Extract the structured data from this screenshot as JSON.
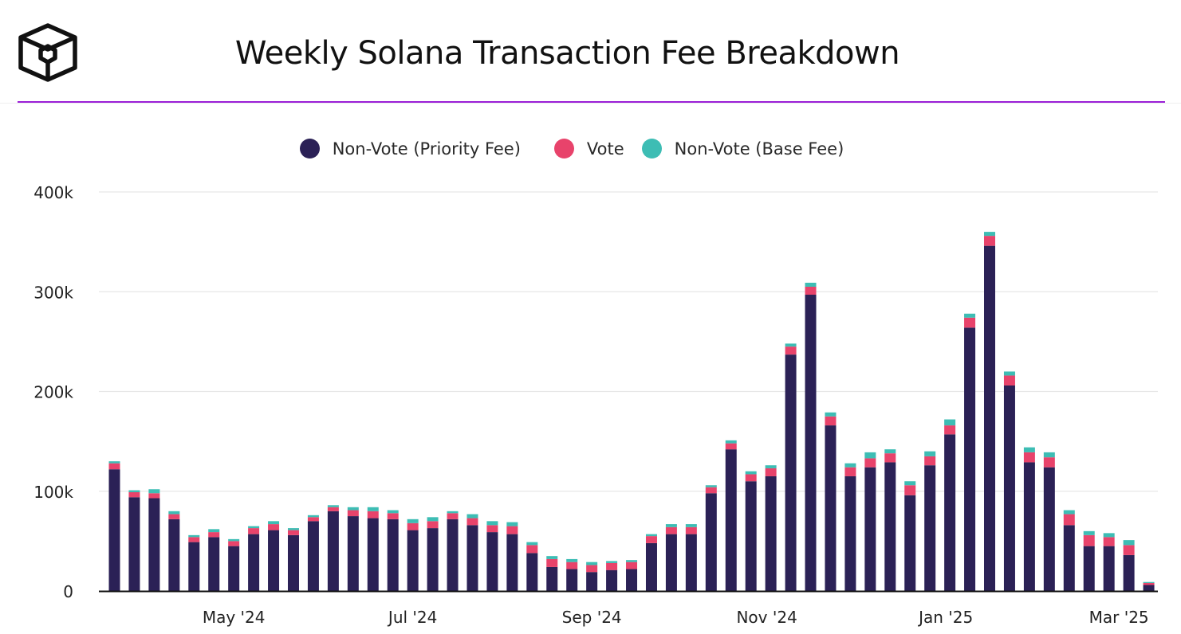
{
  "header": {
    "title": "Weekly Solana Transaction Fee Breakdown",
    "logo_icon": "cube-logo-icon",
    "accent_color": "#9b1fd6"
  },
  "legend": [
    {
      "name": "Non-Vote (Priority Fee)",
      "color": "#2b2156"
    },
    {
      "name": "Vote",
      "color": "#e8436b"
    },
    {
      "name": "Non-Vote (Base Fee)",
      "color": "#3dbdb4"
    }
  ],
  "chart_data": {
    "type": "bar",
    "stacked": true,
    "title": "Weekly Solana Transaction Fee Breakdown",
    "xlabel": "",
    "ylabel": "",
    "ylim": [
      0,
      400000
    ],
    "yticks": [
      "0",
      "100k",
      "200k",
      "300k",
      "400k"
    ],
    "xtick_labels": [
      {
        "label": "May '24",
        "index": 6.5
      },
      {
        "label": "Jul '24",
        "index": 15.5
      },
      {
        "label": "Sep '24",
        "index": 24.5
      },
      {
        "label": "Nov '24",
        "index": 33.3
      },
      {
        "label": "Jan '25",
        "index": 42.3
      },
      {
        "label": "Mar '25",
        "index": 51
      }
    ],
    "grid": true,
    "legend_position": "top-center",
    "series": [
      {
        "name": "Non-Vote (Priority Fee)",
        "color": "#2b2156",
        "values": [
          122000,
          94000,
          93000,
          72000,
          49000,
          54000,
          45000,
          57000,
          61000,
          56000,
          70000,
          80000,
          75000,
          73000,
          72000,
          61000,
          63000,
          72000,
          66000,
          59000,
          57000,
          38000,
          24000,
          22000,
          19000,
          21000,
          22000,
          48000,
          57000,
          57000,
          98000,
          142000,
          110000,
          115000,
          237000,
          297000,
          166000,
          115000,
          124000,
          129000,
          96000,
          126000,
          157000,
          264000,
          346000,
          206000,
          129000,
          124000,
          66000,
          45000,
          45000,
          36000,
          6000
        ]
      },
      {
        "name": "Vote",
        "color": "#e8436b",
        "values": [
          6000,
          5000,
          5000,
          5000,
          5000,
          5000,
          5000,
          6000,
          6000,
          5000,
          4000,
          4000,
          6000,
          7000,
          6000,
          7000,
          7000,
          6000,
          7000,
          7000,
          8000,
          8000,
          8000,
          7000,
          7000,
          7000,
          7000,
          7000,
          7000,
          7000,
          6000,
          6000,
          7000,
          8000,
          8000,
          8000,
          9000,
          9000,
          9000,
          9000,
          10000,
          9000,
          9000,
          10000,
          10000,
          10000,
          10000,
          10000,
          11000,
          11000,
          9000,
          10000,
          2000
        ]
      },
      {
        "name": "Non-Vote (Base Fee)",
        "color": "#3dbdb4",
        "values": [
          2000,
          2000,
          4000,
          3000,
          2000,
          3000,
          2000,
          2000,
          3000,
          2000,
          2000,
          2000,
          3000,
          4000,
          3000,
          4000,
          4000,
          2000,
          4000,
          4000,
          4000,
          3000,
          3000,
          3000,
          3000,
          2000,
          2000,
          2000,
          3000,
          3000,
          2000,
          3000,
          3000,
          3000,
          3000,
          4000,
          4000,
          4000,
          6000,
          4000,
          4000,
          5000,
          6000,
          4000,
          4000,
          4000,
          5000,
          5000,
          4000,
          4000,
          4000,
          5000,
          1000
        ]
      }
    ]
  }
}
